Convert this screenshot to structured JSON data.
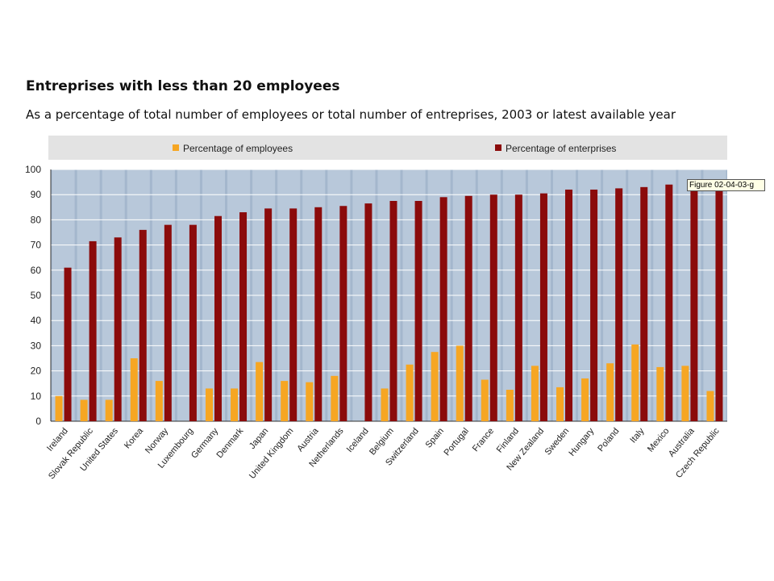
{
  "header": {
    "title": "Entreprises with less than 20 employees",
    "subtitle": "As a percentage of total number of employees or total number of entreprises, 2003 or latest available year"
  },
  "note": "Figure 02-04-03-g",
  "colors": {
    "employees": "#f6a623",
    "enterprises": "#8b0b0b",
    "plot_background": "#a4b7cd",
    "legend_background": "#e3e3e3"
  },
  "chart_data": {
    "type": "bar",
    "categories": [
      "Ireland",
      "Slovak Republic",
      "United States",
      "Korea",
      "Norway",
      "Luxembourg",
      "Germany",
      "Denmark",
      "Japan",
      "United Kingdom",
      "Austria",
      "Netherlands",
      "Iceland",
      "Belgium",
      "Switzerland",
      "Spain",
      "Portugal",
      "France",
      "Finland",
      "New Zealand",
      "Sweden",
      "Hungary",
      "Poland",
      "Italy",
      "Mexico",
      "Australia",
      "Czech Republic"
    ],
    "series": [
      {
        "name": "Percentage of employees",
        "values": [
          10,
          8.5,
          8.5,
          25,
          16,
          null,
          13,
          13,
          23.5,
          16,
          15.5,
          18,
          null,
          13,
          22.5,
          27.5,
          30,
          16.5,
          12.5,
          22,
          13.5,
          17,
          23,
          30.5,
          21.5,
          22,
          12
        ]
      },
      {
        "name": "Percentage of enterprises",
        "values": [
          61,
          71.5,
          73,
          76,
          78,
          78,
          81.5,
          83,
          84.5,
          84.5,
          85,
          85.5,
          86.5,
          87.5,
          87.5,
          89,
          89.5,
          90,
          90,
          90.5,
          92,
          92,
          92.5,
          93,
          94,
          94,
          94
        ]
      }
    ],
    "ylim": [
      0,
      100
    ],
    "yticks": [
      0,
      10,
      20,
      30,
      40,
      50,
      60,
      70,
      80,
      90,
      100
    ],
    "legend_position": "top"
  }
}
